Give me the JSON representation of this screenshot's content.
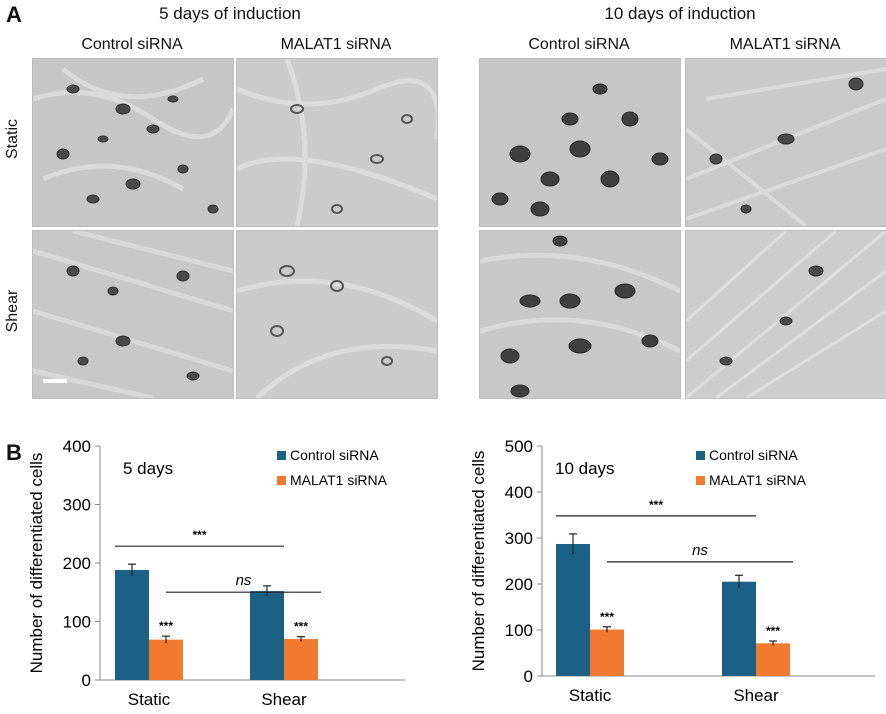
{
  "panel_a": {
    "letter": "A",
    "groups": [
      {
        "title": "5 days of induction",
        "columns": [
          "Control siRNA",
          "MALAT1 siRNA"
        ]
      },
      {
        "title": "10 days of induction",
        "columns": [
          "Control siRNA",
          "MALAT1 siRNA"
        ]
      }
    ],
    "rows": [
      "Static",
      "Shear"
    ]
  },
  "panel_b": {
    "letter": "B"
  },
  "colors": {
    "control": "#1a6185",
    "malat1": "#f07a30",
    "error": "#222222"
  },
  "chart_data": [
    {
      "type": "bar",
      "title": "",
      "annotation": "5 days",
      "categories": [
        "Static",
        "Shear"
      ],
      "series": [
        {
          "name": "Control siRNA",
          "values": [
            188,
            152
          ],
          "errors": [
            10,
            9
          ],
          "sig": [
            "",
            ""
          ]
        },
        {
          "name": "MALAT1 siRNA",
          "values": [
            69,
            70
          ],
          "errors": [
            6,
            4
          ],
          "sig": [
            "***",
            "***"
          ]
        }
      ],
      "ylabel": "Number of differentiated cells",
      "xlabel": "",
      "ylim": [
        0,
        400
      ],
      "yticks": [
        0,
        100,
        200,
        300,
        400
      ],
      "legend_position": "top-right",
      "grid": false,
      "brackets": [
        {
          "label": "***",
          "from": "Static/Control siRNA",
          "to": "Shear/Control siRNA",
          "italic": false
        },
        {
          "label": "ns",
          "from": "Static/MALAT1 siRNA",
          "to": "Shear/MALAT1 siRNA",
          "italic": true
        }
      ]
    },
    {
      "type": "bar",
      "title": "",
      "annotation": "10 days",
      "categories": [
        "Static",
        "Shear"
      ],
      "series": [
        {
          "name": "Control siRNA",
          "values": [
            287,
            205
          ],
          "errors": [
            22,
            14
          ],
          "sig": [
            "",
            ""
          ]
        },
        {
          "name": "MALAT1 siRNA",
          "values": [
            101,
            71
          ],
          "errors": [
            6,
            5
          ],
          "sig": [
            "***",
            "***"
          ]
        }
      ],
      "ylabel": "Number of differentiated cells",
      "xlabel": "",
      "ylim": [
        0,
        500
      ],
      "yticks": [
        0,
        100,
        200,
        300,
        400,
        500
      ],
      "legend_position": "top-right",
      "grid": false,
      "brackets": [
        {
          "label": "***",
          "from": "Static/Control siRNA",
          "to": "Shear/Control siRNA",
          "italic": false
        },
        {
          "label": "ns",
          "from": "Static/MALAT1 siRNA",
          "to": "Shear/MALAT1 siRNA",
          "italic": true
        }
      ]
    }
  ]
}
